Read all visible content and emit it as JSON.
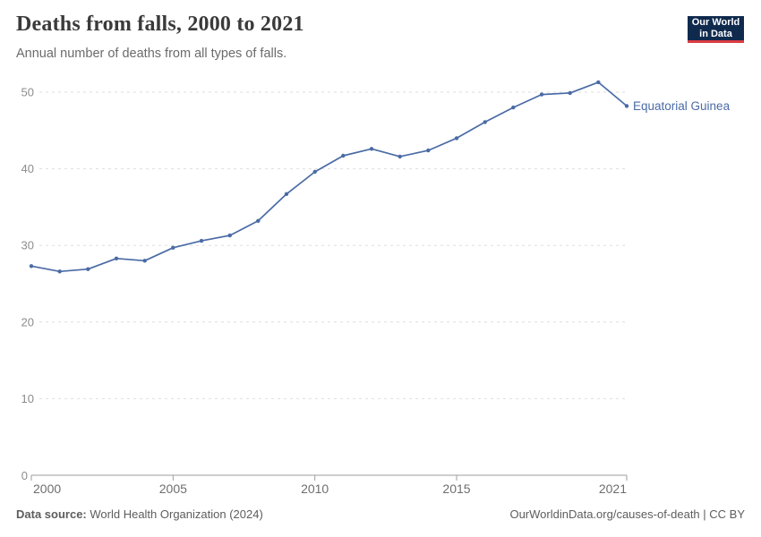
{
  "header": {
    "title": "Deaths from falls, 2000 to 2021",
    "subtitle": "Annual number of deaths from all types of falls."
  },
  "logo": {
    "line1": "Our World",
    "line2": "in Data",
    "bg_color": "#102a4e",
    "accent_color": "#dc3d43"
  },
  "footer": {
    "source_label": "Data source:",
    "source_value": "World Health Organization (2024)",
    "license": "OurWorldinData.org/causes-of-death | CC BY"
  },
  "chart_data": {
    "type": "line",
    "title": "Deaths from falls, 2000 to 2021",
    "subtitle": "Annual number of deaths from all types of falls.",
    "xlabel": "",
    "ylabel": "",
    "xlim": [
      2000,
      2021
    ],
    "ylim": [
      0,
      52
    ],
    "grid": "horizontal-dashed",
    "legend_position": "end-of-line-label",
    "x_ticks": [
      2000,
      2005,
      2010,
      2015,
      2021
    ],
    "y_ticks": [
      0,
      10,
      20,
      30,
      40,
      50
    ],
    "series": [
      {
        "name": "Equatorial Guinea",
        "color": "#4a6ba5",
        "x": [
          2000,
          2001,
          2002,
          2003,
          2004,
          2005,
          2006,
          2007,
          2008,
          2009,
          2010,
          2011,
          2012,
          2013,
          2014,
          2015,
          2016,
          2017,
          2018,
          2019,
          2020,
          2021
        ],
        "values": [
          27.3,
          26.6,
          26.9,
          28.3,
          28.0,
          29.7,
          30.6,
          31.3,
          33.2,
          36.7,
          39.6,
          41.7,
          42.6,
          41.6,
          42.4,
          44.0,
          46.1,
          48.0,
          49.7,
          49.9,
          51.3,
          48.2
        ]
      }
    ],
    "axis_colors": {
      "gridline": "#dedede",
      "axis_line": "#9e9e9e",
      "y_tick_label": "#8c8c8c",
      "x_tick_label": "#6e6e6e"
    }
  }
}
